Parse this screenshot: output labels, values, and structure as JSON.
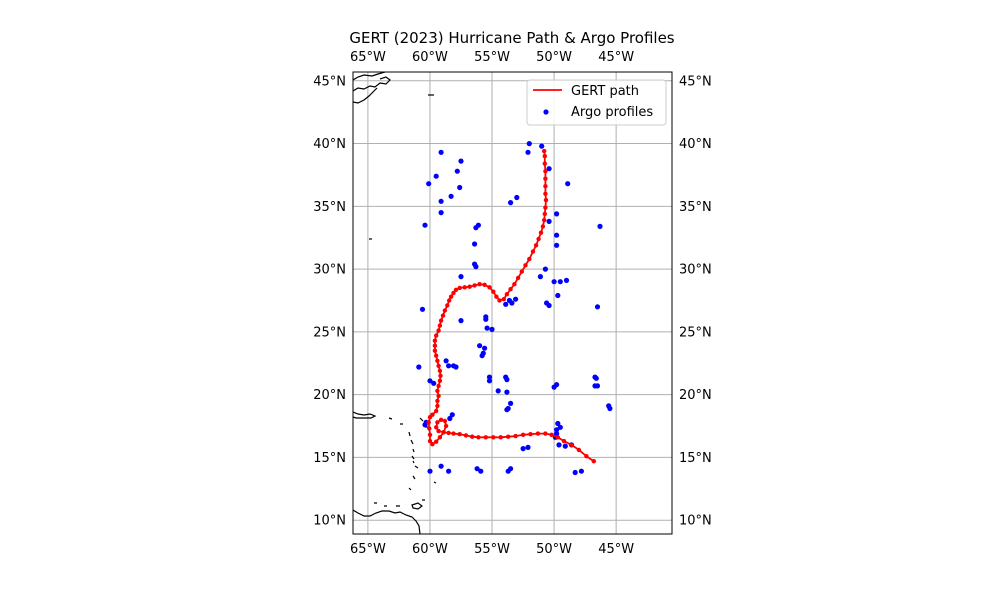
{
  "chart_data": {
    "type": "map",
    "title": "GERT (2023) Hurricane Path & Argo Profiles",
    "lon_range": [
      -66.2,
      -40.5
    ],
    "lat_range": [
      8.9,
      45.7
    ],
    "lon_ticks": [
      -65,
      -60,
      -55,
      -50,
      -45
    ],
    "lon_tick_labels": [
      "65°W",
      "60°W",
      "55°W",
      "50°W",
      "45°W"
    ],
    "lat_ticks": [
      10,
      15,
      20,
      25,
      30,
      35,
      40,
      45
    ],
    "lat_tick_labels": [
      "10°N",
      "15°N",
      "20°N",
      "25°N",
      "30°N",
      "35°N",
      "40°N",
      "45°N"
    ],
    "grid": true,
    "legend_placement": "top-right",
    "colors": {
      "path": "#ff0000",
      "argo": "#0000ff",
      "coast": "#000000",
      "grid": "#b0b0b0"
    },
    "series": [
      {
        "name": "GERT path",
        "kind": "line",
        "points": [
          [
            -46.8,
            14.7
          ],
          [
            -47.4,
            15.1
          ],
          [
            -48.0,
            15.6
          ],
          [
            -48.6,
            16.0
          ],
          [
            -49.2,
            16.3
          ],
          [
            -49.7,
            16.6
          ],
          [
            -50.2,
            16.8
          ],
          [
            -50.7,
            16.9
          ],
          [
            -51.3,
            16.9
          ],
          [
            -51.9,
            16.85
          ],
          [
            -52.5,
            16.8
          ],
          [
            -53.1,
            16.7
          ],
          [
            -53.7,
            16.65
          ],
          [
            -54.3,
            16.6
          ],
          [
            -54.9,
            16.6
          ],
          [
            -55.5,
            16.6
          ],
          [
            -56.1,
            16.6
          ],
          [
            -56.6,
            16.65
          ],
          [
            -57.1,
            16.75
          ],
          [
            -57.6,
            16.85
          ],
          [
            -58.1,
            16.9
          ],
          [
            -58.5,
            16.95
          ],
          [
            -58.9,
            17.0
          ],
          [
            -59.3,
            17.1
          ],
          [
            -59.5,
            17.4
          ],
          [
            -59.4,
            17.8
          ],
          [
            -59.1,
            18.0
          ],
          [
            -58.8,
            17.9
          ],
          [
            -58.7,
            17.5
          ],
          [
            -58.9,
            17.0
          ],
          [
            -59.2,
            16.6
          ],
          [
            -59.5,
            16.25
          ],
          [
            -59.8,
            16.05
          ],
          [
            -60.0,
            16.3
          ],
          [
            -60.0,
            16.8
          ],
          [
            -60.05,
            17.3
          ],
          [
            -60.1,
            17.8
          ],
          [
            -60.0,
            18.2
          ],
          [
            -59.8,
            18.4
          ],
          [
            -59.5,
            18.7
          ],
          [
            -59.4,
            19.1
          ],
          [
            -59.4,
            19.5
          ],
          [
            -59.3,
            19.9
          ],
          [
            -59.4,
            20.3
          ],
          [
            -59.3,
            20.7
          ],
          [
            -59.2,
            21.1
          ],
          [
            -59.15,
            21.5
          ],
          [
            -59.2,
            21.9
          ],
          [
            -59.3,
            22.3
          ],
          [
            -59.4,
            22.7
          ],
          [
            -59.5,
            23.1
          ],
          [
            -59.6,
            23.5
          ],
          [
            -59.6,
            23.9
          ],
          [
            -59.6,
            24.3
          ],
          [
            -59.5,
            24.7
          ],
          [
            -59.3,
            25.1
          ],
          [
            -59.2,
            25.5
          ],
          [
            -59.1,
            25.9
          ],
          [
            -58.95,
            26.3
          ],
          [
            -58.8,
            26.7
          ],
          [
            -58.6,
            27.1
          ],
          [
            -58.45,
            27.5
          ],
          [
            -58.3,
            27.8
          ],
          [
            -58.1,
            28.1
          ],
          [
            -57.9,
            28.35
          ],
          [
            -57.6,
            28.5
          ],
          [
            -57.2,
            28.55
          ],
          [
            -56.8,
            28.6
          ],
          [
            -56.4,
            28.7
          ],
          [
            -56.0,
            28.8
          ],
          [
            -55.6,
            28.75
          ],
          [
            -55.2,
            28.55
          ],
          [
            -54.9,
            28.2
          ],
          [
            -54.65,
            27.8
          ],
          [
            -54.4,
            27.5
          ],
          [
            -54.05,
            27.6
          ],
          [
            -53.8,
            28.0
          ],
          [
            -53.5,
            28.4
          ],
          [
            -53.2,
            28.8
          ],
          [
            -52.9,
            29.3
          ],
          [
            -52.6,
            29.8
          ],
          [
            -52.3,
            30.3
          ],
          [
            -52.0,
            30.8
          ],
          [
            -51.7,
            31.4
          ],
          [
            -51.45,
            31.9
          ],
          [
            -51.25,
            32.4
          ],
          [
            -51.05,
            32.9
          ],
          [
            -50.9,
            33.4
          ],
          [
            -50.8,
            33.9
          ],
          [
            -50.75,
            34.4
          ],
          [
            -50.7,
            34.9
          ],
          [
            -50.65,
            35.5
          ],
          [
            -50.7,
            36.0
          ],
          [
            -50.7,
            36.6
          ],
          [
            -50.7,
            37.2
          ],
          [
            -50.7,
            37.8
          ],
          [
            -50.75,
            38.4
          ],
          [
            -50.75,
            39.0
          ],
          [
            -50.8,
            39.4
          ]
        ]
      },
      {
        "name": "Argo profiles",
        "kind": "scatter",
        "points": [
          [
            -59.1,
            39.3
          ],
          [
            -57.5,
            38.6
          ],
          [
            -57.8,
            37.8
          ],
          [
            -59.5,
            37.4
          ],
          [
            -60.1,
            36.8
          ],
          [
            -57.6,
            36.5
          ],
          [
            -58.3,
            35.8
          ],
          [
            -59.1,
            35.4
          ],
          [
            -59.1,
            34.5
          ],
          [
            -60.4,
            33.5
          ],
          [
            -56.1,
            33.5
          ],
          [
            -56.3,
            33.3
          ],
          [
            -56.4,
            32.0
          ],
          [
            -56.4,
            30.4
          ],
          [
            -56.3,
            30.2
          ],
          [
            -57.5,
            29.4
          ],
          [
            -53.0,
            35.7
          ],
          [
            -53.5,
            35.3
          ],
          [
            -52.0,
            40.0
          ],
          [
            -52.1,
            39.3
          ],
          [
            -51.0,
            39.8
          ],
          [
            -50.4,
            38.0
          ],
          [
            -48.9,
            36.8
          ],
          [
            -49.8,
            34.4
          ],
          [
            -50.4,
            33.8
          ],
          [
            -49.8,
            32.7
          ],
          [
            -49.8,
            31.9
          ],
          [
            -50.7,
            30.0
          ],
          [
            -51.1,
            29.4
          ],
          [
            -50.0,
            29.0
          ],
          [
            -49.5,
            29.0
          ],
          [
            -49.0,
            29.1
          ],
          [
            -49.7,
            27.9
          ],
          [
            -50.6,
            27.3
          ],
          [
            -50.4,
            27.1
          ],
          [
            -46.5,
            27.0
          ],
          [
            -46.3,
            33.4
          ],
          [
            -53.6,
            27.5
          ],
          [
            -53.4,
            27.3
          ],
          [
            -53.1,
            27.6
          ],
          [
            -53.9,
            27.2
          ],
          [
            -55.5,
            26.2
          ],
          [
            -55.5,
            26.0
          ],
          [
            -57.5,
            25.9
          ],
          [
            -60.6,
            26.8
          ],
          [
            -55.4,
            25.3
          ],
          [
            -55.0,
            25.2
          ],
          [
            -56.0,
            23.9
          ],
          [
            -55.6,
            23.7
          ],
          [
            -55.7,
            23.3
          ],
          [
            -55.8,
            23.1
          ],
          [
            -58.7,
            22.7
          ],
          [
            -58.5,
            22.3
          ],
          [
            -58.1,
            22.3
          ],
          [
            -57.9,
            22.2
          ],
          [
            -60.9,
            22.2
          ],
          [
            -60.0,
            21.1
          ],
          [
            -59.7,
            20.9
          ],
          [
            -55.2,
            21.4
          ],
          [
            -55.2,
            21.1
          ],
          [
            -53.9,
            21.4
          ],
          [
            -53.8,
            21.2
          ],
          [
            -54.5,
            20.3
          ],
          [
            -53.8,
            20.2
          ],
          [
            -53.5,
            19.3
          ],
          [
            -53.7,
            18.9
          ],
          [
            -53.8,
            18.8
          ],
          [
            -58.2,
            18.4
          ],
          [
            -58.4,
            18.1
          ],
          [
            -60.4,
            17.6
          ],
          [
            -60.3,
            17.8
          ],
          [
            -52.5,
            15.7
          ],
          [
            -52.1,
            15.8
          ],
          [
            -50.0,
            20.6
          ],
          [
            -49.8,
            20.8
          ],
          [
            -46.7,
            21.4
          ],
          [
            -46.6,
            21.3
          ],
          [
            -46.7,
            20.7
          ],
          [
            -46.5,
            20.7
          ],
          [
            -45.5,
            18.9
          ],
          [
            -45.6,
            19.1
          ],
          [
            -49.7,
            17.7
          ],
          [
            -49.5,
            17.4
          ],
          [
            -49.8,
            17.2
          ],
          [
            -49.9,
            16.6
          ],
          [
            -49.6,
            16.0
          ],
          [
            -49.1,
            15.9
          ],
          [
            -48.6,
            16.0
          ],
          [
            -49.8,
            16.9
          ],
          [
            -48.3,
            13.8
          ],
          [
            -47.8,
            13.9
          ],
          [
            -53.5,
            14.1
          ],
          [
            -53.7,
            13.9
          ],
          [
            -56.2,
            14.1
          ],
          [
            -55.9,
            13.9
          ],
          [
            -59.1,
            14.3
          ],
          [
            -58.5,
            13.9
          ],
          [
            -60.0,
            13.9
          ]
        ]
      }
    ]
  }
}
